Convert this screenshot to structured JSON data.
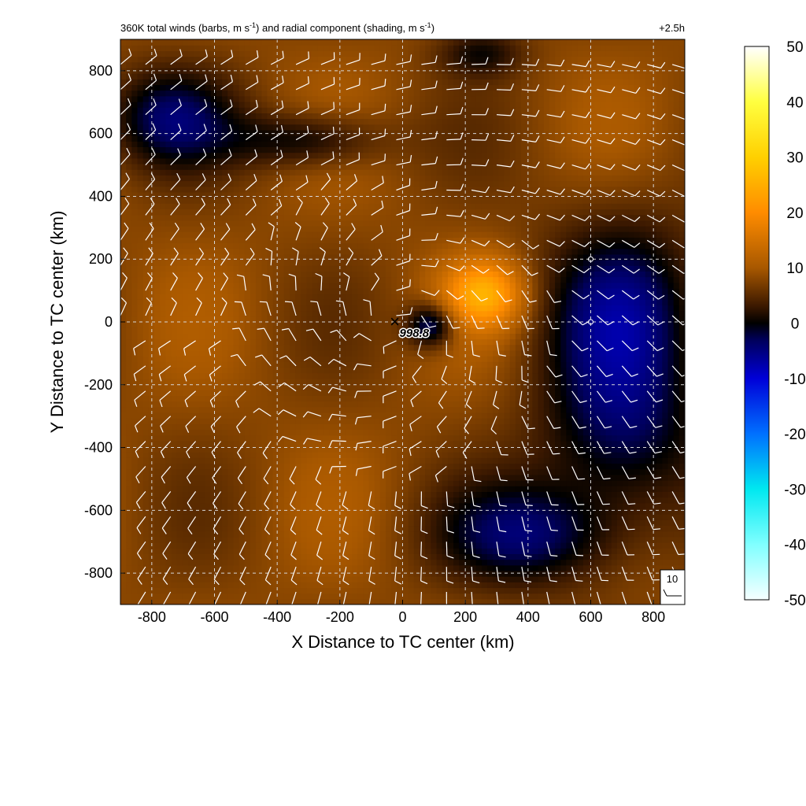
{
  "chart_data": {
    "type": "heatmap",
    "title_left": "360K total winds (barbs, m s",
    "title_left_mid": ") and radial component (shading, m s",
    "title_left_end": ")",
    "title_superscript": "-1",
    "title_right": "+2.5h",
    "xlabel": "X Distance to TC center (km)",
    "ylabel": "Y Distance to TC center (km)",
    "xlim": [
      -900,
      900
    ],
    "ylim": [
      -900,
      900
    ],
    "xticks": [
      -800,
      -600,
      -400,
      -200,
      0,
      200,
      400,
      600,
      800
    ],
    "yticks": [
      -800,
      -600,
      -400,
      -200,
      0,
      200,
      400,
      600,
      800
    ],
    "grid": true,
    "colorbar": {
      "min": -50,
      "max": 50,
      "ticks": [
        50,
        40,
        30,
        20,
        10,
        0,
        -10,
        -20,
        -30,
        -40,
        -50
      ],
      "stops": [
        {
          "value": -50,
          "color": "#f6ffff"
        },
        {
          "value": -40,
          "color": "#80ffff"
        },
        {
          "value": -30,
          "color": "#00e8f0"
        },
        {
          "value": -20,
          "color": "#0070ff"
        },
        {
          "value": -10,
          "color": "#0000d8"
        },
        {
          "value": -3,
          "color": "#00005a"
        },
        {
          "value": 0,
          "color": "#000000"
        },
        {
          "value": 3,
          "color": "#3a1800"
        },
        {
          "value": 10,
          "color": "#a85800"
        },
        {
          "value": 20,
          "color": "#ff8c00"
        },
        {
          "value": 30,
          "color": "#ffd000"
        },
        {
          "value": 40,
          "color": "#ffff40"
        },
        {
          "value": 50,
          "color": "#ffffff"
        }
      ]
    },
    "center_marker": {
      "x": -25,
      "y": 0,
      "symbol": "×",
      "label": "998.8"
    },
    "station_markers": [
      {
        "x": 600,
        "y": 200
      },
      {
        "x": 600,
        "y": 0
      }
    ],
    "barb_reference": {
      "label": "10"
    }
  }
}
